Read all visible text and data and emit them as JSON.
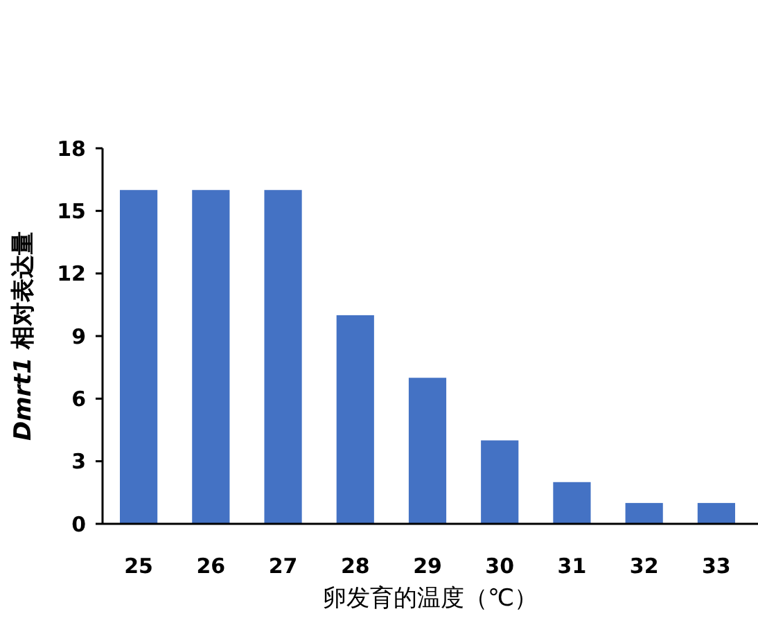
{
  "chart_data": {
    "type": "bar",
    "xlabel": "卵发育的温度（℃）",
    "ylabel": "Dmrt1 相对表达量",
    "categories": [
      "25",
      "26",
      "27",
      "28",
      "29",
      "30",
      "31",
      "32",
      "33"
    ],
    "values": [
      16,
      16,
      16,
      10,
      7,
      4,
      2,
      1,
      1
    ],
    "color": "#4472c4",
    "ylim": [
      0,
      18
    ],
    "yticks": [
      0,
      3,
      6,
      9,
      12,
      15,
      18
    ],
    "grid": false
  }
}
